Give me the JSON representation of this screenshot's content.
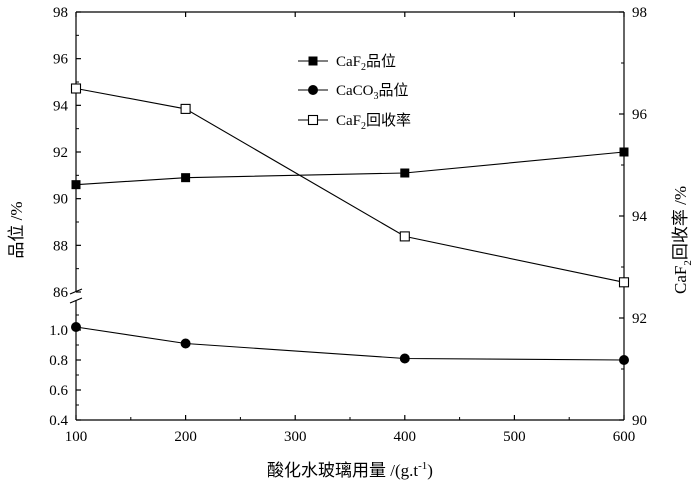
{
  "chart_data": {
    "type": "line",
    "x": [
      100,
      200,
      400,
      600
    ],
    "xlabel": "酸化水玻璃用量 /(g.t",
    "xlabel_sup": "-1",
    "xlabel_tail": ")",
    "xlim": [
      100,
      600
    ],
    "xticks": [
      "100",
      "200",
      "300",
      "400",
      "500",
      "600"
    ],
    "left_ylabel": "品位 /%",
    "left_ylim_upper": [
      86,
      98
    ],
    "left_ylim_lower": [
      0.4,
      1.2
    ],
    "left_yticks_upper": [
      "86",
      "88",
      "90",
      "92",
      "94",
      "96",
      "98"
    ],
    "left_yticks_lower": [
      "0.4",
      "0.6",
      "0.8",
      "1.0"
    ],
    "left_axis_break": true,
    "right_ylabel_pre": "CaF",
    "right_ylabel_sub": "2",
    "right_ylabel_post": "回收率 /%",
    "right_ylim": [
      90,
      98
    ],
    "right_yticks": [
      "90",
      "92",
      "94",
      "96",
      "98"
    ],
    "series": [
      {
        "name_pre": "CaF",
        "name_sub": "2",
        "name_post": "品位",
        "axis": "left-upper",
        "marker": "filled-square",
        "values": [
          90.6,
          90.9,
          91.1,
          92.0
        ]
      },
      {
        "name_pre": "CaCO",
        "name_sub": "3",
        "name_post": "品位",
        "axis": "left-lower",
        "marker": "filled-circle",
        "values": [
          1.02,
          0.91,
          0.81,
          0.8
        ]
      },
      {
        "name_pre": "CaF",
        "name_sub": "2",
        "name_post": "回收率",
        "axis": "right",
        "marker": "open-square",
        "values": [
          96.5,
          96.1,
          93.6,
          92.7
        ]
      }
    ],
    "legend_position": "top-center",
    "grid": false
  }
}
